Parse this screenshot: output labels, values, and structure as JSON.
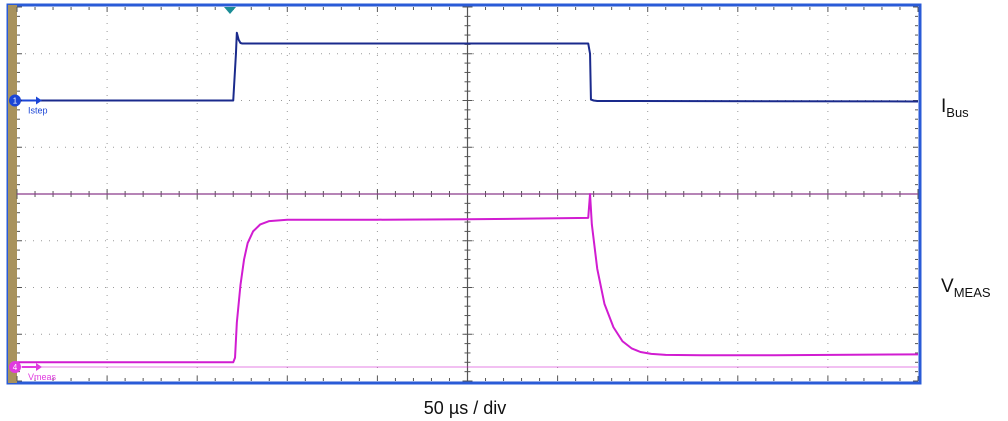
{
  "chart_data": {
    "type": "line",
    "title": "",
    "xlabel": "50 µs / div",
    "grid": true,
    "grid_divisions": {
      "x": 10,
      "y": 8
    },
    "x_unit": "µs",
    "x_range": [
      0,
      500
    ],
    "y_range_divisions": [
      0,
      8
    ],
    "trigger_marker_x": 120,
    "series": [
      {
        "name": "IBus",
        "label_main": "I",
        "label_sub": "Bus",
        "probe_tag": "Istep",
        "channel": "1",
        "color": "#1a2a8c",
        "marker_color": "#1b45d6",
        "reference_level_div": 6.0,
        "x": [
          0,
          120,
          121.5,
          122,
          123,
          124,
          125,
          300,
          317,
          318,
          318.5,
          320,
          322,
          500
        ],
        "y": [
          6.0,
          6.0,
          7.0,
          7.45,
          7.3,
          7.23,
          7.22,
          7.22,
          7.22,
          7.0,
          6.02,
          6.0,
          5.99,
          5.98
        ]
      },
      {
        "name": "VMEAS",
        "label_main": "V",
        "label_sub": "MEAS",
        "probe_tag": "Vmeas",
        "channel": "4",
        "color": "#d11cd1",
        "marker_color": "#e03be0",
        "reference_level_div": 0.3,
        "limit_line_div": 4.0,
        "x": [
          0,
          120,
          121,
          122,
          124,
          126,
          128,
          131,
          135,
          140,
          150,
          170,
          200,
          250,
          300,
          317,
          318,
          319,
          322,
          326,
          331,
          336,
          341,
          346,
          352,
          360,
          380,
          420,
          500
        ],
        "y": [
          0.4,
          0.4,
          0.5,
          1.25,
          2.05,
          2.6,
          2.95,
          3.2,
          3.35,
          3.42,
          3.45,
          3.45,
          3.45,
          3.46,
          3.48,
          3.49,
          4.0,
          3.35,
          2.4,
          1.65,
          1.15,
          0.85,
          0.7,
          0.62,
          0.58,
          0.56,
          0.55,
          0.55,
          0.57
        ]
      }
    ]
  }
}
